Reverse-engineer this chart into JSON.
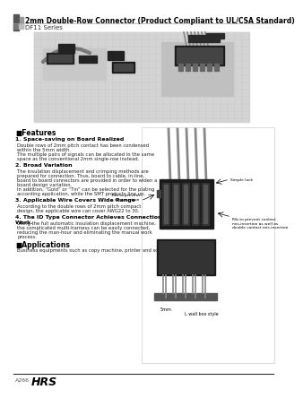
{
  "title": "2mm Double-Row Connector (Product Compliant to UL/CSA Standard)",
  "series": "DF11 Series",
  "background_color": "#ffffff",
  "features_title": "■Features",
  "features": [
    {
      "heading": "1. Space-saving on Board Realized",
      "body": "Double rows of 2mm pitch contact has been condensed\nwithin the 5mm width.\nThe multiple pairs of signals can be allocated in the same\nspace as the conventional 2mm single-row instead."
    },
    {
      "heading": "2. Broad Variation",
      "body": "The insulation displacement and crimping methods are\nprepared for connection. Thus, board to cable, in-line,\nboard to board connectors are provided in order to widen a\nboard design variation.\nIn addition, “Gold” or “Tin” can be selected for the plating\naccording application, while the SMT products line up."
    },
    {
      "heading": "3. Applicable Wire Covers Wide Range",
      "body": "According to the double rows of 2mm pitch compact\ndesign, the applicable wire can cover AWG22 to 30."
    },
    {
      "heading": "4. The ID Type Connector Achieves Connection\nWork.",
      "body": "Using the full automatic insulation displacement machine,\nthe complicated multi-harness can be easily connected,\nreducing the man-hour and eliminating the manual work\nprocess."
    }
  ],
  "applications_title": "■Applications",
  "applications_body": "Business equipments such as copy machine, printer and so on.",
  "footer_text": "A266",
  "footer_logo": "HRS",
  "right_image_annotations": [
    "Rib to prevent\nmis-insertion",
    "Simple lock",
    "Rib to prevent contact\nmis-insertion as well as\ndouble contact mis-insertion"
  ],
  "bottom_annotation1": "5mm",
  "bottom_annotation2": "L wall box style"
}
